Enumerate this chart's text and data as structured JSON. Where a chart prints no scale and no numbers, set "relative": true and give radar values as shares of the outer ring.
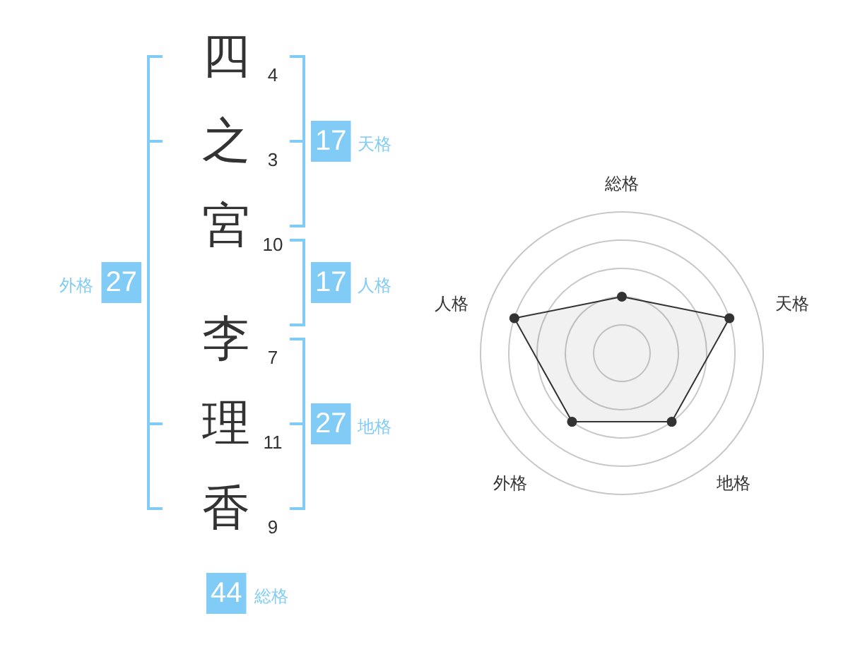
{
  "chart_data": [
    {
      "type": "other",
      "categories": [
        "四",
        "之",
        "宮",
        "李",
        "理",
        "香"
      ],
      "values": [
        4,
        3,
        10,
        7,
        11,
        9
      ],
      "data_labels": true,
      "color": "#80ccf7",
      "annotations": [
        "17",
        "天格",
        "17",
        "人格",
        "27",
        "地格",
        "27",
        "外格",
        "44",
        "総格"
      ]
    },
    {
      "type": "radar",
      "categories": [
        "総格",
        "天格",
        "地格",
        "外格",
        "人格"
      ],
      "relative": true,
      "grid": true,
      "marker": "circle",
      "series": [
        {
          "color": "#333333",
          "values": [
            0.4,
            0.8,
            0.6,
            0.6,
            0.8
          ]
        }
      ]
    }
  ]
}
